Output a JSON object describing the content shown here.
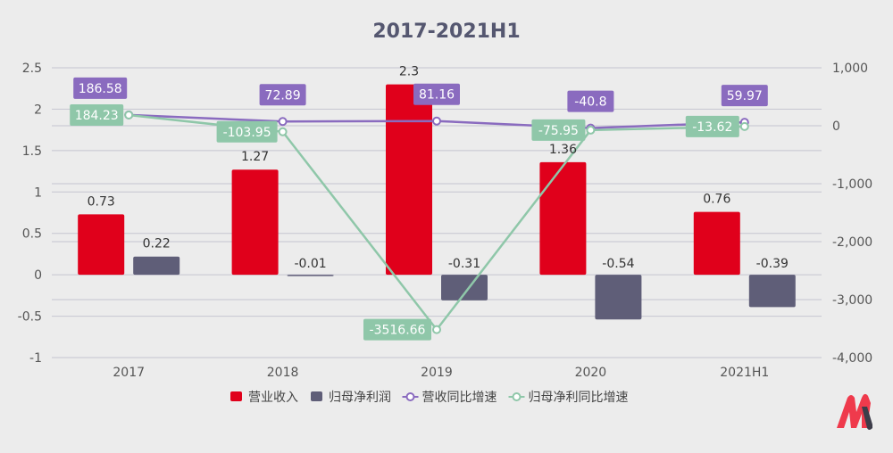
{
  "chart_data": {
    "type": "bar+line",
    "title": "2017-2021H1",
    "categories": [
      "2017",
      "2018",
      "2019",
      "2020",
      "2021H1"
    ],
    "left_axis": {
      "ylim": [
        -1,
        2.5
      ],
      "ticks": [
        "2.5",
        "2",
        "1.5",
        "1",
        "0.5",
        "0",
        "-0.5",
        "-1"
      ],
      "tick_values": [
        2.5,
        2,
        1.5,
        1,
        0.5,
        0,
        -0.5,
        -1
      ]
    },
    "right_axis": {
      "ylim": [
        -4000,
        1000
      ],
      "ticks": [
        "1,000",
        "0",
        "-1,000",
        "-2,000",
        "-3,000",
        "-4,000"
      ],
      "tick_values": [
        1000,
        0,
        -1000,
        -2000,
        -3000,
        -4000
      ]
    },
    "series": [
      {
        "name": "营业收入",
        "type": "bar",
        "axis": "left",
        "color": "#e0001b",
        "values": [
          0.73,
          1.27,
          2.3,
          1.36,
          0.76
        ],
        "labels": [
          "0.73",
          "1.27",
          "2.3",
          "1.36",
          "0.76"
        ]
      },
      {
        "name": "归母净利润",
        "type": "bar",
        "axis": "left",
        "color": "#5f5e78",
        "values": [
          0.22,
          -0.01,
          -0.31,
          -0.54,
          -0.39
        ],
        "labels": [
          "0.22",
          "-0.01",
          "-0.31",
          "-0.54",
          "-0.39"
        ]
      },
      {
        "name": "营收同比增速",
        "type": "line",
        "axis": "right",
        "color": "#8a6bbf",
        "values": [
          186.58,
          72.89,
          81.16,
          -40.8,
          59.97
        ],
        "labels": [
          "186.58",
          "72.89",
          "81.16",
          "-40.8",
          "59.97"
        ]
      },
      {
        "name": "归母净利同比增速",
        "type": "line",
        "axis": "right",
        "color": "#8fc7a9",
        "values": [
          184.23,
          -103.95,
          -3516.66,
          -75.95,
          -13.62
        ],
        "labels": [
          "184.23",
          "-103.95",
          "-3516.66",
          "-75.95",
          "-13.62"
        ]
      }
    ],
    "grid": true,
    "legend": "bottom"
  }
}
